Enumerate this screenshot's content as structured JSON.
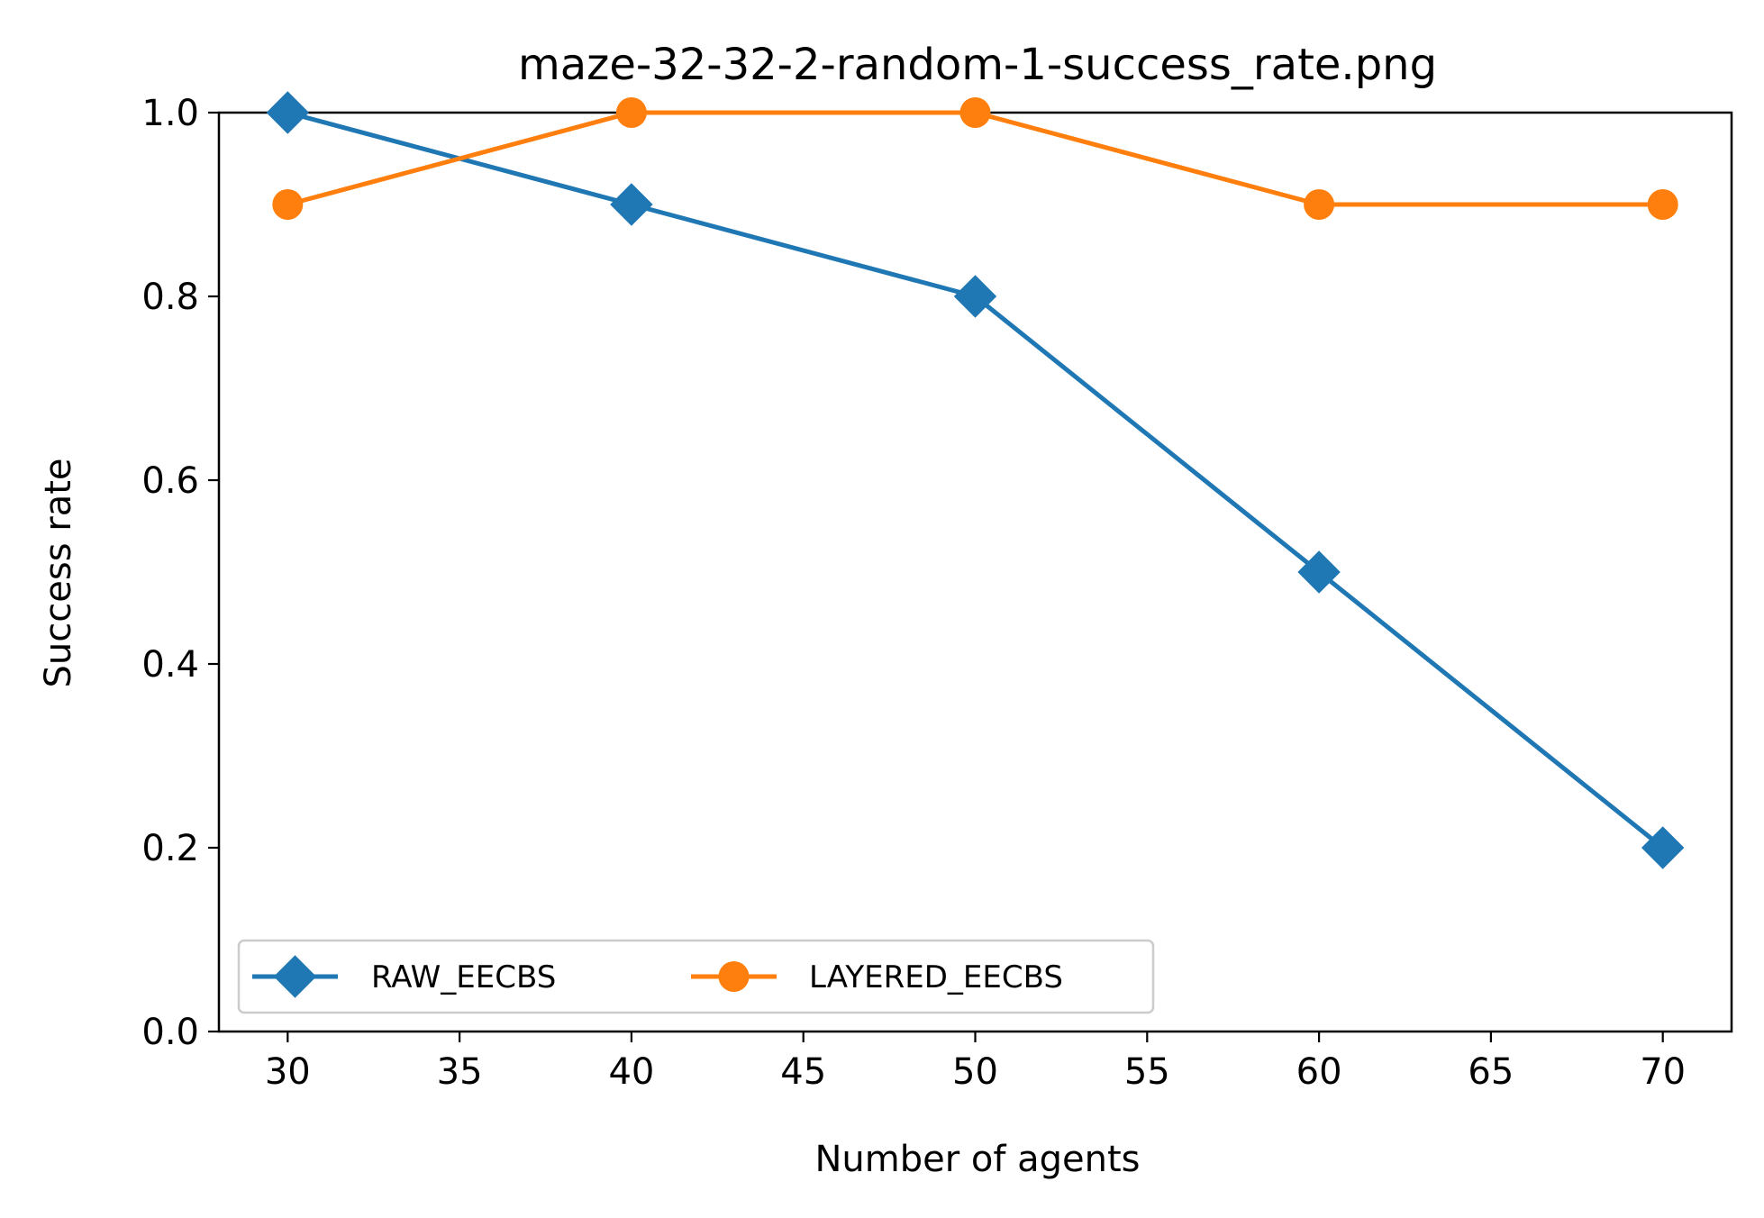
{
  "chart_data": {
    "type": "line",
    "title": "maze-32-32-2-random-1-success_rate.png",
    "xlabel": "Number of agents",
    "ylabel": "Success rate",
    "x": [
      30,
      40,
      50,
      60,
      70
    ],
    "xlim": [
      28,
      72
    ],
    "ylim": [
      0.0,
      1.0
    ],
    "xticks": [
      30,
      35,
      40,
      45,
      50,
      55,
      60,
      65,
      70
    ],
    "yticks": [
      0.0,
      0.2,
      0.4,
      0.6,
      0.8,
      1.0
    ],
    "xtick_labels": [
      "30",
      "35",
      "40",
      "45",
      "50",
      "55",
      "60",
      "65",
      "70"
    ],
    "ytick_labels": [
      "0.0",
      "0.2",
      "0.4",
      "0.6",
      "0.8",
      "1.0"
    ],
    "grid": false,
    "legend_position": "lower-left",
    "series": [
      {
        "name": "RAW_EECBS",
        "values": [
          1.0,
          0.9,
          0.8,
          0.5,
          0.2
        ],
        "color": "#1f77b4",
        "marker": "diamond"
      },
      {
        "name": "LAYERED_EECBS",
        "values": [
          0.9,
          1.0,
          1.0,
          0.9,
          0.9
        ],
        "color": "#ff7f0e",
        "marker": "circle"
      }
    ]
  }
}
